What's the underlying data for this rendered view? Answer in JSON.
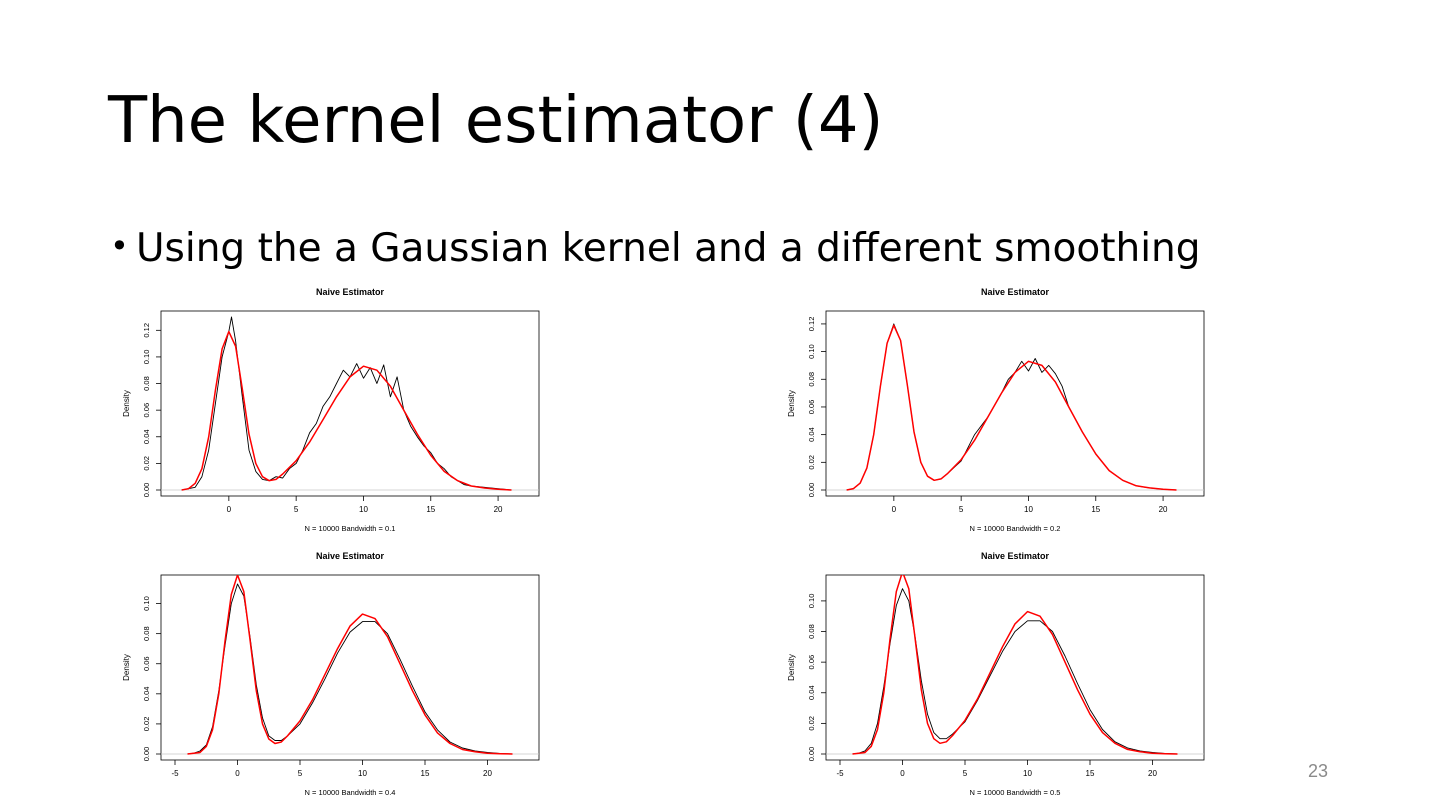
{
  "slide": {
    "title": "The kernel estimator (4)",
    "bullet": "Using the a Gaussian kernel and a different smoothing",
    "page_number": "23"
  },
  "chart_data": [
    {
      "type": "line",
      "title": "Naive Estimator",
      "xlabel": "N = 10000   Bandwidth = 0.1",
      "ylabel": "Density",
      "xlim": [
        -4,
        22
      ],
      "ylim": [
        0,
        0.13
      ],
      "xticks": [
        "0",
        "5",
        "10",
        "15",
        "20"
      ],
      "xtick_values": [
        0,
        5,
        10,
        15,
        20
      ],
      "yticks": [
        "0.00",
        "0.02",
        "0.04",
        "0.06",
        "0.08",
        "0.10",
        "0.12"
      ],
      "ytick_values": [
        0,
        0.02,
        0.04,
        0.06,
        0.08,
        0.1,
        0.12
      ],
      "grid": false,
      "series": [
        {
          "color": "#000000",
          "x": [
            -3.5,
            -2.5,
            -2,
            -1.5,
            -1,
            -0.5,
            0,
            0.2,
            0.5,
            1,
            1.5,
            2,
            2.5,
            3,
            3.5,
            4,
            4.5,
            5,
            5.5,
            6,
            6.5,
            7,
            7.5,
            8,
            8.5,
            9,
            9.5,
            10,
            10.5,
            11,
            11.5,
            12,
            12.5,
            13,
            13.5,
            14,
            14.5,
            15,
            15.5,
            16,
            16.5,
            17,
            17.5,
            18,
            19,
            20,
            21
          ],
          "y": [
            0,
            0.002,
            0.01,
            0.03,
            0.065,
            0.1,
            0.119,
            0.13,
            0.112,
            0.07,
            0.03,
            0.014,
            0.008,
            0.007,
            0.01,
            0.009,
            0.016,
            0.02,
            0.03,
            0.043,
            0.05,
            0.063,
            0.07,
            0.08,
            0.09,
            0.085,
            0.095,
            0.084,
            0.092,
            0.08,
            0.094,
            0.07,
            0.085,
            0.06,
            0.048,
            0.04,
            0.033,
            0.028,
            0.02,
            0.016,
            0.01,
            0.007,
            0.004,
            0.003,
            0.002,
            0.001,
            0
          ]
        },
        {
          "color": "#ff0000",
          "x": [
            -3.5,
            -3,
            -2.5,
            -2,
            -1.5,
            -1,
            -0.5,
            0,
            0.5,
            1,
            1.5,
            2,
            2.5,
            3,
            3.5,
            4,
            5,
            6,
            7,
            8,
            9,
            10,
            11,
            12,
            13,
            14,
            15,
            16,
            17,
            18,
            19,
            20,
            21
          ],
          "y": [
            0,
            0.001,
            0.005,
            0.016,
            0.04,
            0.075,
            0.106,
            0.119,
            0.108,
            0.076,
            0.042,
            0.02,
            0.01,
            0.007,
            0.008,
            0.012,
            0.022,
            0.036,
            0.053,
            0.07,
            0.085,
            0.093,
            0.09,
            0.078,
            0.06,
            0.042,
            0.026,
            0.014,
            0.007,
            0.003,
            0.0015,
            0.0005,
            0
          ]
        }
      ]
    },
    {
      "type": "line",
      "title": "Naive Estimator",
      "xlabel": "N = 10000   Bandwidth = 0.2",
      "ylabel": "Density",
      "xlim": [
        -4,
        22
      ],
      "ylim": [
        0,
        0.125
      ],
      "xticks": [
        "0",
        "5",
        "10",
        "15",
        "20"
      ],
      "xtick_values": [
        0,
        5,
        10,
        15,
        20
      ],
      "yticks": [
        "0.00",
        "0.02",
        "0.04",
        "0.06",
        "0.08",
        "0.10",
        "0.12"
      ],
      "ytick_values": [
        0,
        0.02,
        0.04,
        0.06,
        0.08,
        0.1,
        0.12
      ],
      "grid": false,
      "series": [
        {
          "color": "#000000",
          "x": [
            -3.5,
            -3,
            -2.5,
            -2,
            -1.5,
            -1,
            -0.5,
            0,
            0.5,
            1,
            1.5,
            2,
            2.5,
            3,
            3.5,
            4,
            5,
            6,
            7,
            8,
            8.5,
            9,
            9.5,
            10,
            10.5,
            11,
            11.5,
            12,
            12.5,
            13,
            14,
            15,
            16,
            17,
            18,
            19,
            20,
            21
          ],
          "y": [
            0,
            0.001,
            0.005,
            0.016,
            0.04,
            0.075,
            0.106,
            0.12,
            0.108,
            0.076,
            0.042,
            0.02,
            0.01,
            0.007,
            0.008,
            0.012,
            0.021,
            0.04,
            0.053,
            0.07,
            0.08,
            0.085,
            0.093,
            0.086,
            0.095,
            0.085,
            0.09,
            0.084,
            0.075,
            0.06,
            0.042,
            0.026,
            0.014,
            0.007,
            0.003,
            0.0015,
            0.0005,
            0
          ]
        },
        {
          "color": "#ff0000",
          "x": [
            -3.5,
            -3,
            -2.5,
            -2,
            -1.5,
            -1,
            -0.5,
            0,
            0.5,
            1,
            1.5,
            2,
            2.5,
            3,
            3.5,
            4,
            5,
            6,
            7,
            8,
            9,
            10,
            11,
            12,
            13,
            14,
            15,
            16,
            17,
            18,
            19,
            20,
            21
          ],
          "y": [
            0,
            0.001,
            0.005,
            0.016,
            0.04,
            0.075,
            0.106,
            0.119,
            0.108,
            0.076,
            0.042,
            0.02,
            0.01,
            0.007,
            0.008,
            0.012,
            0.022,
            0.036,
            0.053,
            0.07,
            0.085,
            0.093,
            0.09,
            0.078,
            0.06,
            0.042,
            0.026,
            0.014,
            0.007,
            0.003,
            0.0015,
            0.0005,
            0
          ]
        }
      ]
    },
    {
      "type": "line",
      "title": "Naive Estimator",
      "xlabel": "N = 10000   Bandwidth = 0.4",
      "ylabel": "Density",
      "xlim": [
        -5,
        23
      ],
      "ylim": [
        0,
        0.115
      ],
      "xticks": [
        "-5",
        "0",
        "5",
        "10",
        "15",
        "20"
      ],
      "xtick_values": [
        -5,
        0,
        5,
        10,
        15,
        20
      ],
      "yticks": [
        "0.00",
        "0.02",
        "0.04",
        "0.06",
        "0.08",
        "0.10"
      ],
      "ytick_values": [
        0,
        0.02,
        0.04,
        0.06,
        0.08,
        0.1
      ],
      "grid": false,
      "series": [
        {
          "color": "#000000",
          "x": [
            -4,
            -3.5,
            -3,
            -2.5,
            -2,
            -1.5,
            -1,
            -0.5,
            0,
            0.5,
            1,
            1.5,
            2,
            2.5,
            3,
            3.5,
            4,
            5,
            6,
            7,
            8,
            9,
            10,
            11,
            12,
            13,
            14,
            15,
            16,
            17,
            18,
            19,
            20,
            21,
            22
          ],
          "y": [
            0,
            0.0005,
            0.002,
            0.006,
            0.018,
            0.042,
            0.072,
            0.1,
            0.113,
            0.105,
            0.078,
            0.046,
            0.024,
            0.012,
            0.009,
            0.009,
            0.012,
            0.02,
            0.034,
            0.05,
            0.067,
            0.081,
            0.088,
            0.088,
            0.08,
            0.063,
            0.045,
            0.028,
            0.016,
            0.008,
            0.004,
            0.002,
            0.001,
            0.0003,
            0
          ]
        },
        {
          "color": "#ff0000",
          "x": [
            -4,
            -3.5,
            -3,
            -2.5,
            -2,
            -1.5,
            -1,
            -0.5,
            0,
            0.5,
            1,
            1.5,
            2,
            2.5,
            3,
            3.5,
            4,
            5,
            6,
            7,
            8,
            9,
            10,
            11,
            12,
            13,
            14,
            15,
            16,
            17,
            18,
            19,
            20,
            21,
            22
          ],
          "y": [
            0,
            0.0005,
            0.001,
            0.005,
            0.016,
            0.04,
            0.075,
            0.106,
            0.119,
            0.108,
            0.076,
            0.042,
            0.02,
            0.01,
            0.007,
            0.008,
            0.012,
            0.022,
            0.036,
            0.053,
            0.07,
            0.085,
            0.093,
            0.09,
            0.078,
            0.06,
            0.042,
            0.026,
            0.014,
            0.007,
            0.003,
            0.0015,
            0.0005,
            0.0002,
            0
          ]
        }
      ]
    },
    {
      "type": "line",
      "title": "Naive Estimator",
      "xlabel": "N = 10000   Bandwidth = 0.5",
      "ylabel": "Density",
      "xlim": [
        -5,
        23
      ],
      "ylim": [
        0,
        0.113
      ],
      "xticks": [
        "-5",
        "0",
        "5",
        "10",
        "15",
        "20"
      ],
      "xtick_values": [
        -5,
        0,
        5,
        10,
        15,
        20
      ],
      "yticks": [
        "0.00",
        "0.02",
        "0.04",
        "0.06",
        "0.08",
        "0.10"
      ],
      "ytick_values": [
        0,
        0.02,
        0.04,
        0.06,
        0.08,
        0.1
      ],
      "grid": false,
      "series": [
        {
          "color": "#000000",
          "x": [
            -4,
            -3.5,
            -3,
            -2.5,
            -2,
            -1.5,
            -1,
            -0.5,
            0,
            0.5,
            1,
            1.5,
            2,
            2.5,
            3,
            3.5,
            4,
            5,
            6,
            7,
            8,
            9,
            10,
            11,
            12,
            13,
            14,
            15,
            16,
            17,
            18,
            19,
            20,
            21,
            22
          ],
          "y": [
            0,
            0.0005,
            0.002,
            0.007,
            0.02,
            0.044,
            0.072,
            0.097,
            0.108,
            0.1,
            0.077,
            0.048,
            0.026,
            0.014,
            0.01,
            0.01,
            0.013,
            0.021,
            0.035,
            0.051,
            0.067,
            0.08,
            0.087,
            0.087,
            0.08,
            0.064,
            0.046,
            0.029,
            0.016,
            0.008,
            0.004,
            0.002,
            0.001,
            0.0003,
            0
          ]
        },
        {
          "color": "#ff0000",
          "x": [
            -4,
            -3.5,
            -3,
            -2.5,
            -2,
            -1.5,
            -1,
            -0.5,
            0,
            0.5,
            1,
            1.5,
            2,
            2.5,
            3,
            3.5,
            4,
            5,
            6,
            7,
            8,
            9,
            10,
            11,
            12,
            13,
            14,
            15,
            16,
            17,
            18,
            19,
            20,
            21,
            22
          ],
          "y": [
            0,
            0.0005,
            0.001,
            0.005,
            0.016,
            0.04,
            0.075,
            0.106,
            0.119,
            0.108,
            0.076,
            0.042,
            0.02,
            0.01,
            0.007,
            0.008,
            0.012,
            0.022,
            0.036,
            0.053,
            0.07,
            0.085,
            0.093,
            0.09,
            0.078,
            0.06,
            0.042,
            0.026,
            0.014,
            0.007,
            0.003,
            0.0015,
            0.0005,
            0.0002,
            0
          ]
        }
      ]
    }
  ]
}
